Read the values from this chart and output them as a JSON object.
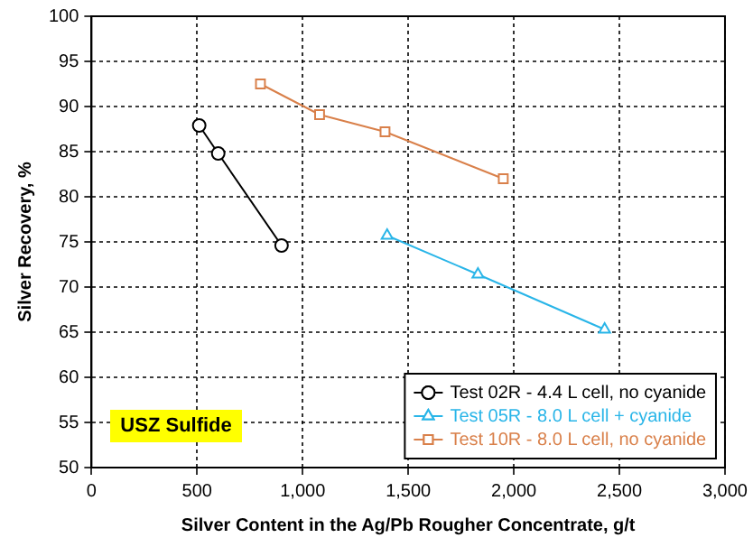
{
  "chart_data": {
    "type": "line",
    "xlabel": "Silver Content in the Ag/Pb Rougher Concentrate, g/t",
    "ylabel": "Silver Recovery, %",
    "xlim": [
      0,
      3000
    ],
    "xticks": [
      {
        "value": 0,
        "label": "0"
      },
      {
        "value": 500,
        "label": "500"
      },
      {
        "value": 1000,
        "label": "1,000"
      },
      {
        "value": 1500,
        "label": "1,500"
      },
      {
        "value": 2000,
        "label": "2,000"
      },
      {
        "value": 2500,
        "label": "2,500"
      },
      {
        "value": 3000,
        "label": "3,000"
      }
    ],
    "ylim": [
      50,
      100
    ],
    "yticks": [
      50,
      55,
      60,
      65,
      70,
      75,
      80,
      85,
      90,
      95,
      100
    ],
    "grid": true,
    "legend": "bottom right",
    "series": [
      {
        "name": "Test 02R - 4.4 L cell, no cyanide",
        "color": "#000000",
        "marker": "circle",
        "x": [
          510,
          600,
          900
        ],
        "values": [
          87.9,
          84.8,
          74.6
        ]
      },
      {
        "name": "Test 05R - 8.0 L cell + cyanide",
        "color": "#29b5e8",
        "marker": "triangle",
        "x": [
          1400,
          1830,
          2430
        ],
        "values": [
          75.7,
          71.4,
          65.3
        ]
      },
      {
        "name": "Test 10R - 8.0 L cell, no cyanide",
        "color": "#d9804a",
        "marker": "square",
        "x": [
          800,
          1080,
          1390,
          1950
        ],
        "values": [
          92.5,
          89.1,
          87.2,
          82.0
        ]
      }
    ],
    "annotations": [
      "USZ Sulfide"
    ]
  }
}
